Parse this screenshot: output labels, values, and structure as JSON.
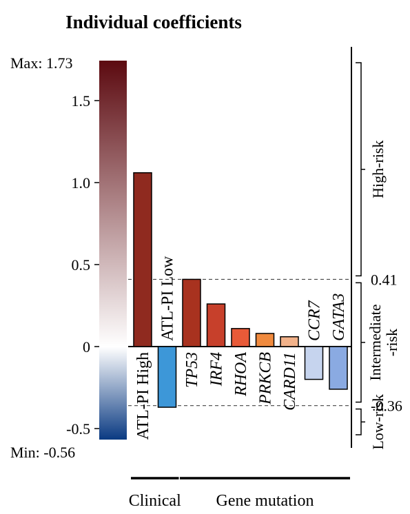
{
  "chart_data": {
    "type": "bar",
    "title": "Individual coefficients",
    "categories": [
      "ATL-PI High",
      "ATL-PI Low",
      "TP53",
      "IRF4",
      "RHOA",
      "PRKCB",
      "CARD11",
      "CCR7",
      "GATA3"
    ],
    "values": [
      1.06,
      -0.37,
      0.41,
      0.26,
      0.11,
      0.08,
      0.06,
      -0.2,
      -0.26
    ],
    "bar_colors": [
      "#8f2a1f",
      "#3d97d8",
      "#a8321f",
      "#c7402b",
      "#e85a38",
      "#f08a3e",
      "#f2b28a",
      "#c6d4ee",
      "#8aaae2"
    ],
    "italic_labels": [
      false,
      false,
      true,
      true,
      true,
      true,
      true,
      true,
      true
    ],
    "ylim": [
      -0.56,
      1.73
    ],
    "yticks": [
      1.5,
      1.0,
      0.5,
      0,
      -0.5
    ],
    "ytick_labels": [
      "1.5",
      "1.0",
      "0.5",
      "0",
      "-0.5"
    ],
    "colorbar": {
      "max_label": "Max: 1.73",
      "min_label": "Min: -0.56",
      "max_value": 1.73,
      "min_value": -0.56,
      "colors": [
        "#5c0a10",
        "#ffffff",
        "#0a3a82"
      ]
    },
    "thresholds": [
      {
        "value": 0.41,
        "label": "0.41"
      },
      {
        "value": -0.36,
        "label": "-0.36"
      }
    ],
    "risk_groups": [
      {
        "label": "High-risk",
        "from": 0.41,
        "to": 1.73
      },
      {
        "label": "Intermediate\n-risk",
        "from": -0.36,
        "to": 0.41
      },
      {
        "label": "Low-risk",
        "from": -0.56,
        "to": -0.36
      }
    ],
    "groups": [
      {
        "label": "Clinical",
        "from": 0,
        "to": 1
      },
      {
        "label": "Gene mutation",
        "from": 2,
        "to": 8
      }
    ]
  }
}
